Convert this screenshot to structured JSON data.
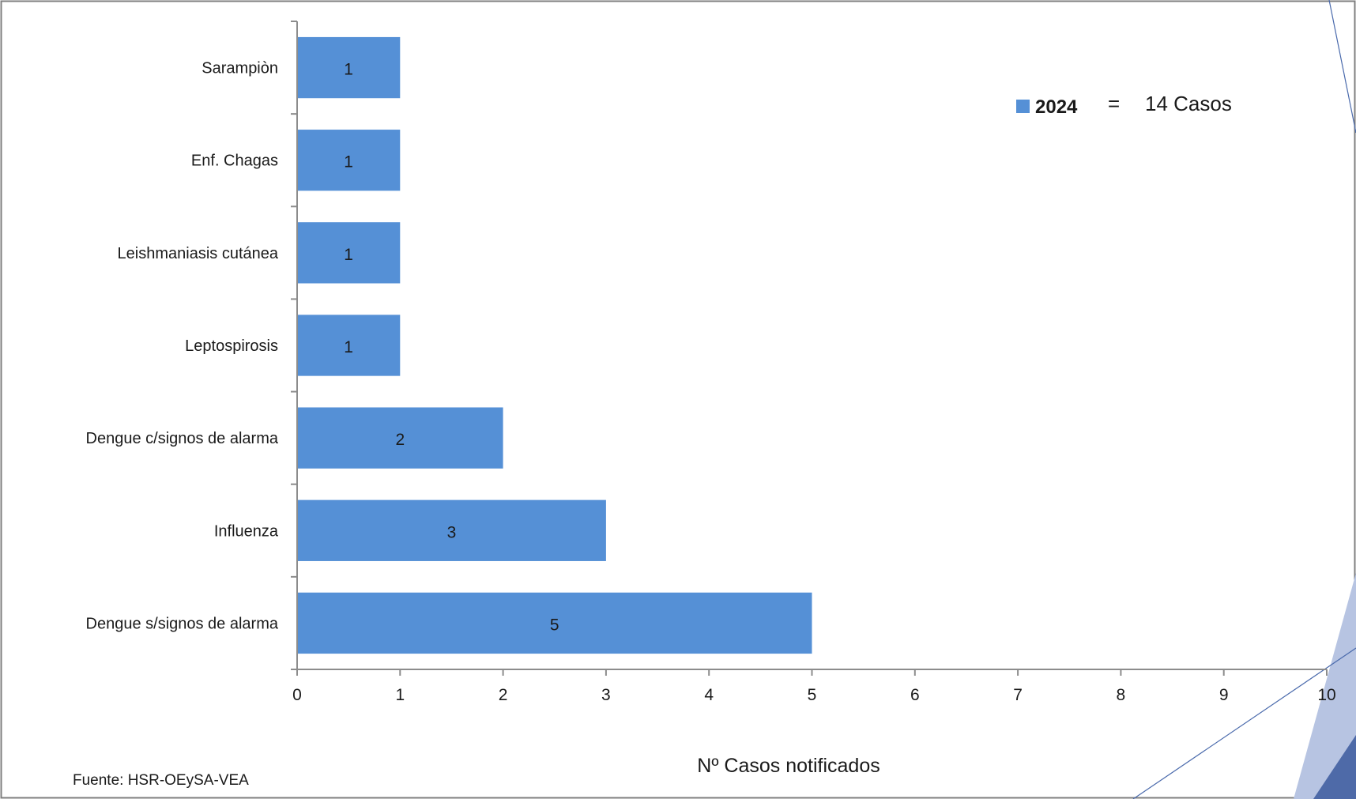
{
  "chart_data": {
    "type": "bar",
    "orientation": "horizontal",
    "categories": [
      "Sarampiòn",
      "Enf. Chagas",
      "Leishmaniasis cutánea",
      "Leptospirosis",
      "Dengue c/signos de alarma",
      "Influenza",
      "Dengue s/signos de alarma"
    ],
    "values": [
      1,
      1,
      1,
      1,
      2,
      3,
      5
    ],
    "xlabel": "Nº Casos notificados",
    "ylabel": "",
    "xlim": [
      0,
      10
    ],
    "x_ticks": [
      "0",
      "1",
      "2",
      "3",
      "4",
      "5",
      "6",
      "7",
      "8",
      "9",
      "10"
    ],
    "grid": false,
    "bar_color": "#5590d6",
    "legend": {
      "position": "top-right",
      "series_name": "2024",
      "equals": "=",
      "total_text": "14 Casos"
    }
  },
  "source_text": "Fuente: HSR-OEySA-VEA",
  "colors": {
    "frame": "#7f7f7f",
    "axis": "#8c8c8c",
    "decor_line": "#4a6aac",
    "decor_light": "#b7c4e2",
    "decor_dark": "#4e6aa8"
  }
}
